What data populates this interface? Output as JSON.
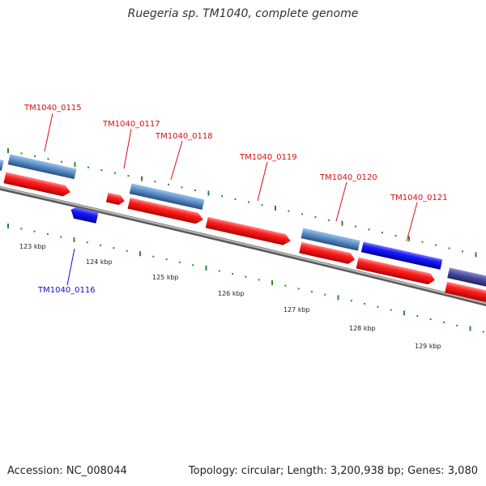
{
  "title": "Ruegeria sp. TM1040, complete genome",
  "footer": {
    "accession": "Accession: NC_008044",
    "topology": "Topology: circular; Length: 3,200,938 bp; Genes: 3,080"
  },
  "colors": {
    "forward_gene": "#ff2a2a",
    "reverse_gene": "#2a2aff",
    "feature_steelblue": "#5a8fc8",
    "feature_slate": "#4a4aa0",
    "backbone": "#8a8a8a",
    "ticks": "#2a8a2a",
    "label_forward": "#d41010",
    "label_reverse": "#1010c8"
  },
  "scale_labels": [
    "123 kbp",
    "124 kbp",
    "125 kbp",
    "126 kbp",
    "127 kbp",
    "128 kbp",
    "129 kbp"
  ],
  "gene_labels": [
    {
      "text": "TM1040_0115",
      "strand": "forward"
    },
    {
      "text": "TM1040_0116",
      "strand": "reverse"
    },
    {
      "text": "TM1040_0117",
      "strand": "forward"
    },
    {
      "text": "TM1040_0118",
      "strand": "forward"
    },
    {
      "text": "TM1040_0119",
      "strand": "forward"
    },
    {
      "text": "TM1040_0120",
      "strand": "forward"
    },
    {
      "text": "TM1040_0121",
      "strand": "forward"
    }
  ]
}
